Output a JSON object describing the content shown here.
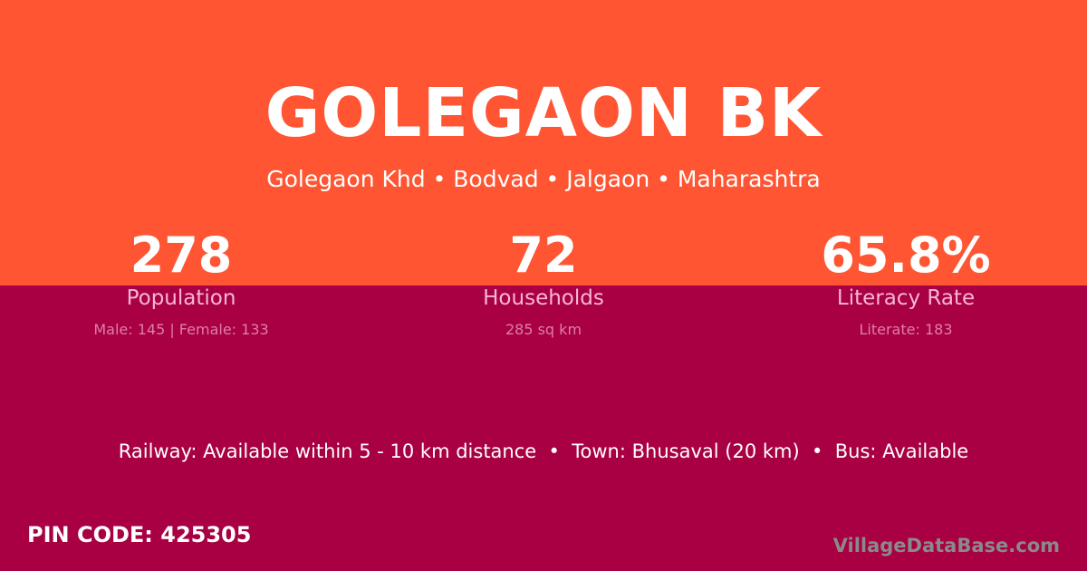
{
  "colors": {
    "top": "#ff5533",
    "bottom": "#a80042"
  },
  "title": "GOLEGAON BK",
  "subtitle": "Golegaon Khd • Bodvad • Jalgaon • Maharashtra",
  "stats": [
    {
      "value": "278",
      "label": "Population",
      "detail": "Male: 145 | Female: 133"
    },
    {
      "value": "72",
      "label": "Households",
      "detail": "285 sq km"
    },
    {
      "value": "65.8%",
      "label": "Literacy Rate",
      "detail": "Literate: 183"
    }
  ],
  "info": "Railway: Available within 5 - 10 km distance  •  Town: Bhusaval (20 km)  •  Bus: Available",
  "pin": "PIN CODE: 425305",
  "brand": "VillageDataBase.com"
}
